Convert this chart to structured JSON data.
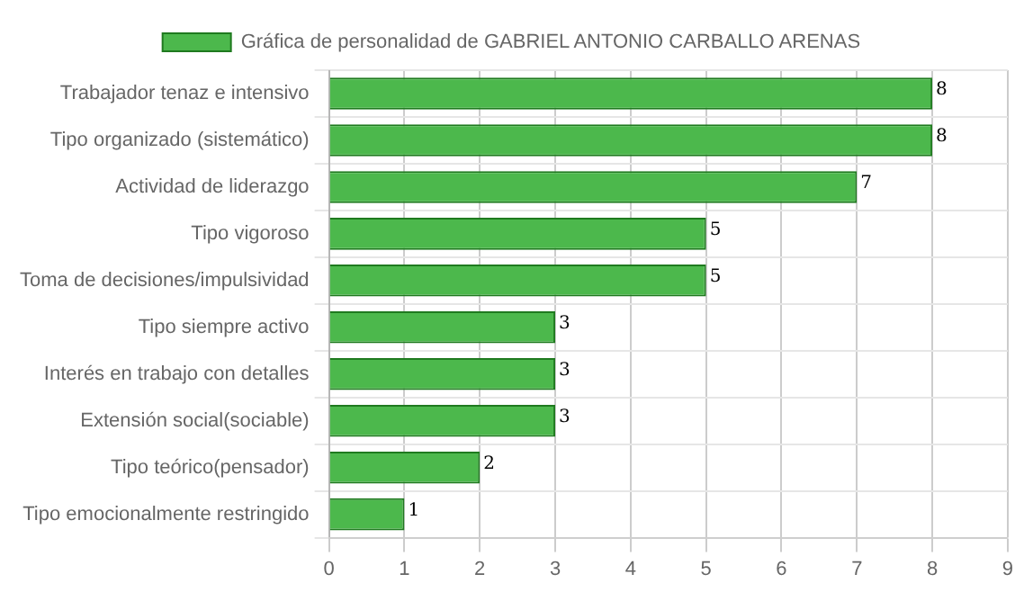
{
  "chart_data": {
    "type": "bar",
    "orientation": "horizontal",
    "categories": [
      "Trabajador tenaz e intensivo",
      "Tipo organizado (sistemático)",
      "Actividad de liderazgo",
      "Tipo vigoroso",
      "Toma de decisiones/impulsividad",
      "Tipo siempre activo",
      "Interés en trabajo con detalles",
      "Extensión social(sociable)",
      "Tipo teórico(pensador)",
      "Tipo emocionalmente restringido"
    ],
    "series": [
      {
        "name": "Gráfica de personalidad de GABRIEL ANTONIO CARBALLO ARENAS",
        "color": "#4cb84c",
        "values": [
          8,
          8,
          7,
          5,
          5,
          3,
          3,
          3,
          2,
          1
        ]
      }
    ],
    "xlim": [
      0,
      9
    ],
    "xticks": [
      0,
      1,
      2,
      3,
      4,
      5,
      6,
      7,
      8,
      9
    ],
    "grid": true,
    "legend": "top",
    "data_labels": true
  }
}
